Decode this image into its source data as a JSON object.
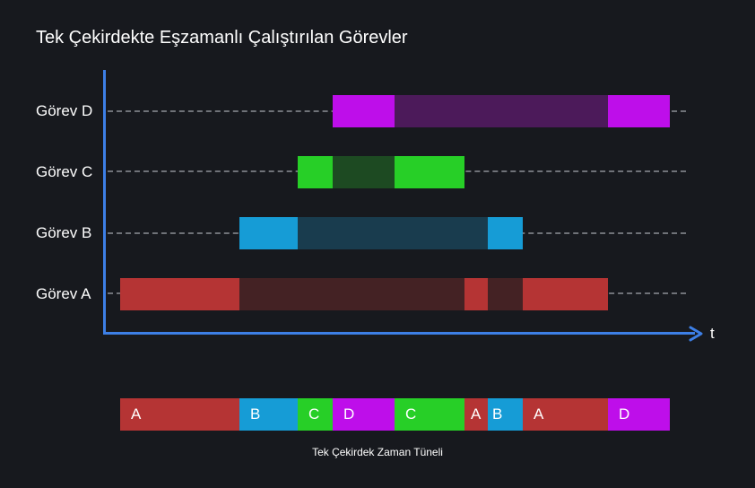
{
  "title": "Tek Çekirdekte Eşzamanlı Çalıştırılan Görevler",
  "axis_label": "t",
  "caption": "Tek Çekirdek Zaman Tüneli",
  "colors": {
    "A": {
      "active": "#b53434",
      "waiting": "#442224"
    },
    "B": {
      "active": "#169cd6",
      "waiting": "#193c4e"
    },
    "C": {
      "active": "#27cf27",
      "waiting": "#1d4a22"
    },
    "D": {
      "active": "#be0eea",
      "waiting": "#4c1a5a"
    },
    "axis": "#3d7fe6",
    "background": "#17191e"
  },
  "tasks": [
    {
      "id": "D",
      "label": "Görev D"
    },
    {
      "id": "C",
      "label": "Görev C"
    },
    {
      "id": "B",
      "label": "Görev B"
    },
    {
      "id": "A",
      "label": "Görev A"
    }
  ],
  "timeline": [
    {
      "task": "A",
      "label": "A"
    },
    {
      "task": "B",
      "label": "B"
    },
    {
      "task": "C",
      "label": "C"
    },
    {
      "task": "D",
      "label": "D"
    },
    {
      "task": "C",
      "label": "C"
    },
    {
      "task": "A",
      "label": "A"
    },
    {
      "task": "B",
      "label": "B"
    },
    {
      "task": "A",
      "label": "A"
    },
    {
      "task": "D",
      "label": "D"
    }
  ]
}
